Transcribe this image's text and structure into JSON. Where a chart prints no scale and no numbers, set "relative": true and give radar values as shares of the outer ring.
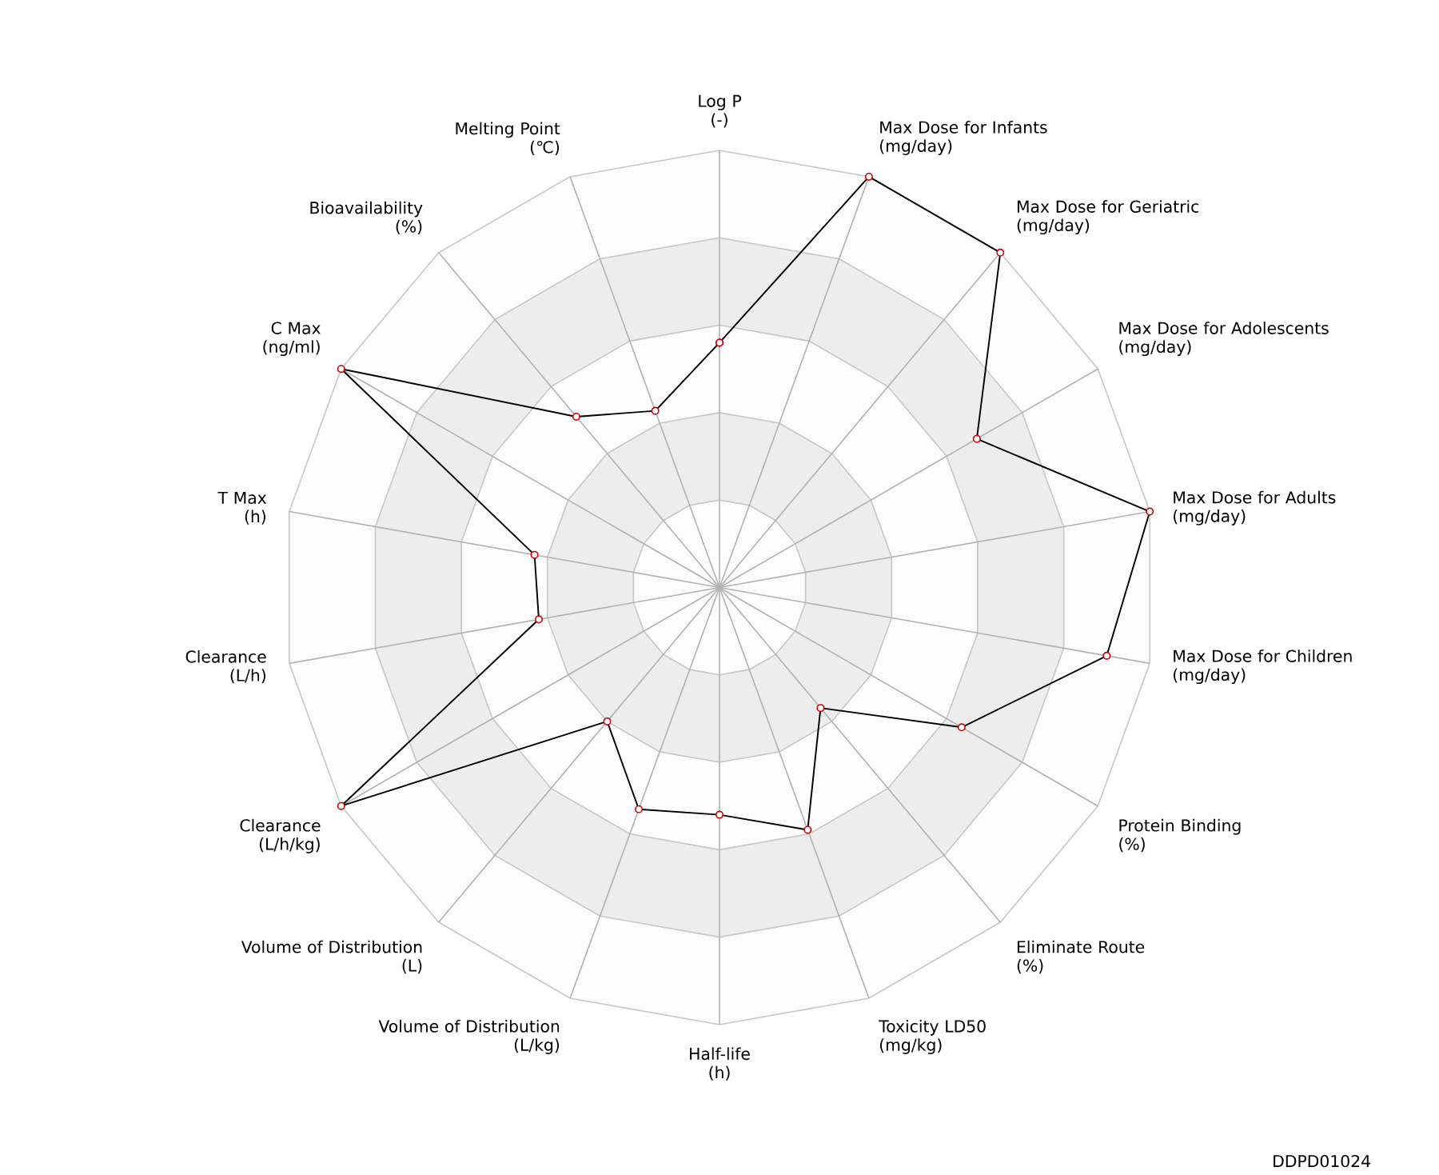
{
  "chart_data": {
    "type": "radar",
    "relative": true,
    "marker": "circle",
    "categories": [
      "Log P\n(-)",
      "Max Dose for Infants\n(mg/day)",
      "Max Dose for Geriatric\n(mg/day)",
      "Max Dose for Adolescents\n(mg/day)",
      "Max Dose for Adults\n(mg/day)",
      "Max Dose for Children\n(mg/day)",
      "Protein Binding\n(%)",
      "Eliminate Route\n(%)",
      "Toxicity LD50\n(mg/kg)",
      "Half-life\n(h)",
      "Volume of Distribution\n(L/kg)",
      "Volume of Distribution\n(L)",
      "Clearance\n(L/h/kg)",
      "Clearance\n(L/h)",
      "T Max\n(h)",
      "C Max\n(ng/ml)",
      "Bioavailability\n(%)",
      "Melting Point\n(℃)"
    ],
    "series": [
      {
        "color": "#000000",
        "values": [
          0.56,
          1.0,
          1.0,
          0.68,
          1.0,
          0.9,
          0.64,
          0.36,
          0.59,
          0.52,
          0.54,
          0.4,
          1.0,
          0.42,
          0.43,
          1.0,
          0.51,
          0.43
        ]
      }
    ],
    "annotations": [
      "DDPD01024"
    ]
  }
}
